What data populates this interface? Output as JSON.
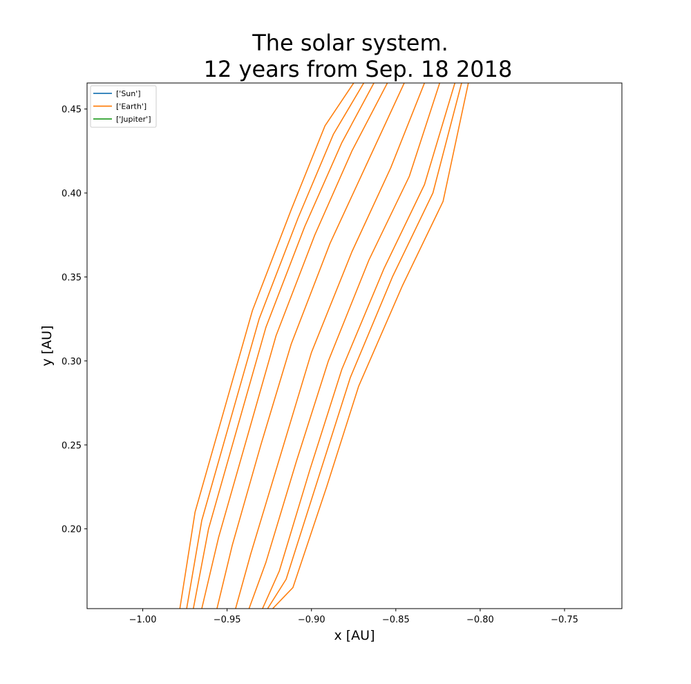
{
  "chart_data": {
    "type": "line",
    "title_line1": "The solar system.",
    "title_line2": "12 years from Sep. 18 2018",
    "xlabel": "x [AU]",
    "ylabel": "y [AU]",
    "xlim": [
      -1.033,
      -0.716
    ],
    "ylim": [
      0.1525,
      0.4655
    ],
    "x_ticks": [
      {
        "value": -1.0,
        "label": "−1.00"
      },
      {
        "value": -0.95,
        "label": "−0.95"
      },
      {
        "value": -0.9,
        "label": "−0.90"
      },
      {
        "value": -0.85,
        "label": "−0.85"
      },
      {
        "value": -0.8,
        "label": "−0.80"
      },
      {
        "value": -0.75,
        "label": "−0.75"
      }
    ],
    "y_ticks": [
      {
        "value": 0.2,
        "label": "0.20"
      },
      {
        "value": 0.25,
        "label": "0.25"
      },
      {
        "value": 0.3,
        "label": "0.30"
      },
      {
        "value": 0.35,
        "label": "0.35"
      },
      {
        "value": 0.4,
        "label": "0.40"
      },
      {
        "value": 0.45,
        "label": "0.45"
      }
    ],
    "grid": false,
    "legend_position": "top-left",
    "legend": [
      {
        "label": "['Sun']",
        "color": "#1f77b4"
      },
      {
        "label": "['Earth']",
        "color": "#ff7f0e"
      },
      {
        "label": "['Jupiter']",
        "color": "#2ca02c"
      }
    ],
    "series": [
      {
        "color": "#ff7f0e",
        "x": [
          -0.978,
          -0.969,
          -0.952,
          -0.935,
          -0.912,
          -0.892,
          -0.875
        ],
        "y": [
          0.1525,
          0.21,
          0.27,
          0.33,
          0.39,
          0.44,
          0.4655
        ]
      },
      {
        "color": "#ff7f0e",
        "x": [
          -0.974,
          -0.965,
          -0.948,
          -0.931,
          -0.908,
          -0.887,
          -0.869
        ],
        "y": [
          0.1525,
          0.205,
          0.265,
          0.325,
          0.385,
          0.435,
          0.4655
        ]
      },
      {
        "color": "#ff7f0e",
        "x": [
          -0.97,
          -0.961,
          -0.944,
          -0.927,
          -0.904,
          -0.882,
          -0.863
        ],
        "y": [
          0.1525,
          0.2,
          0.26,
          0.32,
          0.38,
          0.43,
          0.4655
        ]
      },
      {
        "color": "#ff7f0e",
        "x": [
          -0.965,
          -0.955,
          -0.938,
          -0.921,
          -0.898,
          -0.876,
          -0.855
        ],
        "y": [
          0.1525,
          0.195,
          0.255,
          0.315,
          0.375,
          0.425,
          0.4655
        ]
      },
      {
        "color": "#ff7f0e",
        "x": [
          -0.956,
          -0.947,
          -0.93,
          -0.912,
          -0.889,
          -0.866,
          -0.845
        ],
        "y": [
          0.1525,
          0.19,
          0.25,
          0.31,
          0.37,
          0.42,
          0.4655
        ]
      },
      {
        "color": "#ff7f0e",
        "x": [
          -0.945,
          -0.936,
          -0.918,
          -0.9,
          -0.876,
          -0.853,
          -0.833
        ],
        "y": [
          0.1525,
          0.185,
          0.245,
          0.305,
          0.365,
          0.415,
          0.4655
        ]
      },
      {
        "color": "#ff7f0e",
        "x": [
          -0.937,
          -0.927,
          -0.909,
          -0.89,
          -0.866,
          -0.842,
          -0.824
        ],
        "y": [
          0.1525,
          0.18,
          0.24,
          0.3,
          0.36,
          0.41,
          0.4655
        ]
      },
      {
        "color": "#ff7f0e",
        "x": [
          -0.929,
          -0.919,
          -0.901,
          -0.882,
          -0.857,
          -0.833,
          -0.815
        ],
        "y": [
          0.1525,
          0.175,
          0.235,
          0.295,
          0.355,
          0.405,
          0.4655
        ]
      },
      {
        "color": "#ff7f0e",
        "x": [
          -0.926,
          -0.915,
          -0.896,
          -0.877,
          -0.852,
          -0.828,
          -0.811
        ],
        "y": [
          0.1525,
          0.17,
          0.23,
          0.29,
          0.35,
          0.4,
          0.4655
        ]
      },
      {
        "color": "#ff7f0e",
        "x": [
          -0.923,
          -0.911,
          -0.891,
          -0.872,
          -0.846,
          -0.822,
          -0.807
        ],
        "y": [
          0.1525,
          0.165,
          0.225,
          0.285,
          0.345,
          0.395,
          0.4655
        ]
      }
    ]
  }
}
